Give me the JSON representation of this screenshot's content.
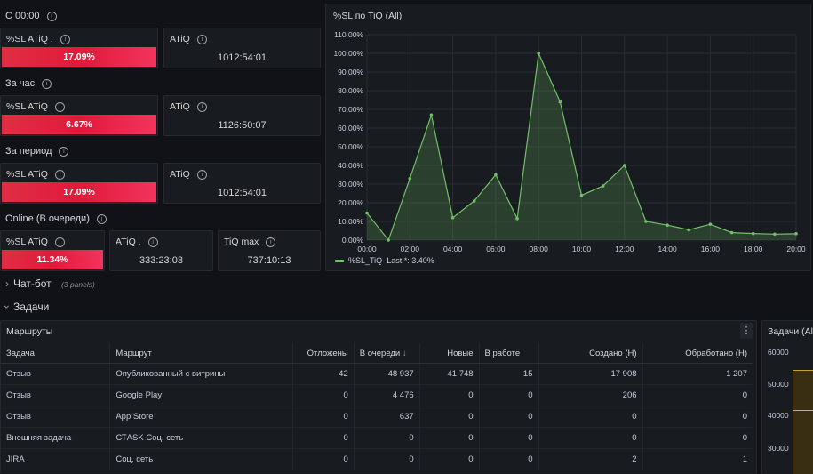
{
  "sections": {
    "since_midnight": "С 00:00",
    "per_hour": "За час",
    "per_period": "За период",
    "online_queue": "Online (В очереди)"
  },
  "stat_panels": {
    "r1": {
      "sl_title": "%SL ATiQ .",
      "sl_value": "17.09%",
      "atiq_title": "ATiQ",
      "atiq_value": "1012:54:01"
    },
    "r2": {
      "sl_title": "%SL ATiQ",
      "sl_value": "6.67%",
      "atiq_title": "ATiQ",
      "atiq_value": "1126:50:07"
    },
    "r3": {
      "sl_title": "%SL ATiQ",
      "sl_value": "17.09%",
      "atiq_title": "ATiQ",
      "atiq_value": "1012:54:01"
    },
    "r4": {
      "sl_title": "%SL ATiQ",
      "sl_value": "11.34%",
      "atiq_title": "ATiQ .",
      "atiq_value": "333:23:03",
      "max_title": "TiQ max",
      "max_value": "737:10:13"
    }
  },
  "chart_panel": {
    "title": "%SL по TiQ (All)",
    "legend_name": "%SL_TiQ",
    "legend_last": "Last *: 3.40%"
  },
  "chart_data": {
    "type": "area",
    "x": [
      "00:00",
      "01:00",
      "02:00",
      "03:00",
      "04:00",
      "05:00",
      "06:00",
      "07:00",
      "08:00",
      "09:00",
      "10:00",
      "11:00",
      "12:00",
      "13:00",
      "14:00",
      "15:00",
      "16:00",
      "17:00",
      "18:00",
      "19:00",
      "20:00"
    ],
    "xticks": [
      "00:00",
      "02:00",
      "04:00",
      "06:00",
      "08:00",
      "10:00",
      "12:00",
      "14:00",
      "16:00",
      "18:00",
      "20:00"
    ],
    "series": [
      {
        "name": "%SL_TiQ",
        "values": [
          14.5,
          0,
          33,
          67,
          12,
          21,
          35,
          11.5,
          100,
          74,
          24,
          29,
          40,
          10,
          8,
          5.5,
          8.5,
          4,
          3.5,
          3.2,
          3.4
        ]
      }
    ],
    "yticks": [
      "0.00%",
      "10.00%",
      "20.00%",
      "30.00%",
      "40.00%",
      "50.00%",
      "60.00%",
      "70.00%",
      "80.00%",
      "90.00%",
      "100.00%",
      "110.00%"
    ],
    "ylim": [
      0,
      110
    ],
    "grid": true,
    "legend": "bottom-left",
    "color": "#73bf69"
  },
  "rows": {
    "chatbot": {
      "label": "Чат-бот",
      "count": "(3 panels)"
    },
    "tasks": {
      "label": "Задачи"
    }
  },
  "routes_panel": {
    "title": "Маршруты",
    "menu_icon": "kebab-menu-icon",
    "columns": [
      "Задача",
      "Маршрут",
      "Отложены",
      "В очереди",
      "Новые",
      "В работе",
      "Создано (Н)",
      "Обработано (Н)"
    ],
    "sort_indicator": "↓",
    "rows": [
      [
        "Отзыв",
        "Опубликованный с витрины",
        "42",
        "48 937",
        "41 748",
        "15",
        "17 908",
        "1 207"
      ],
      [
        "Отзыв",
        "Google Play",
        "0",
        "4 476",
        "0",
        "0",
        "206",
        "0"
      ],
      [
        "Отзыв",
        "App Store",
        "0",
        "637",
        "0",
        "0",
        "0",
        "0"
      ],
      [
        "Внешняя задача",
        "СТASK Соц. сеть",
        "0",
        "0",
        "0",
        "0",
        "0",
        "0"
      ],
      [
        "JIRA",
        "Соц. сеть",
        "0",
        "0",
        "0",
        "0",
        "2",
        "1"
      ]
    ]
  },
  "tasks_all_panel": {
    "title": "Задачи (All",
    "yticks": [
      "60000",
      "50000",
      "40000",
      "30000"
    ]
  }
}
